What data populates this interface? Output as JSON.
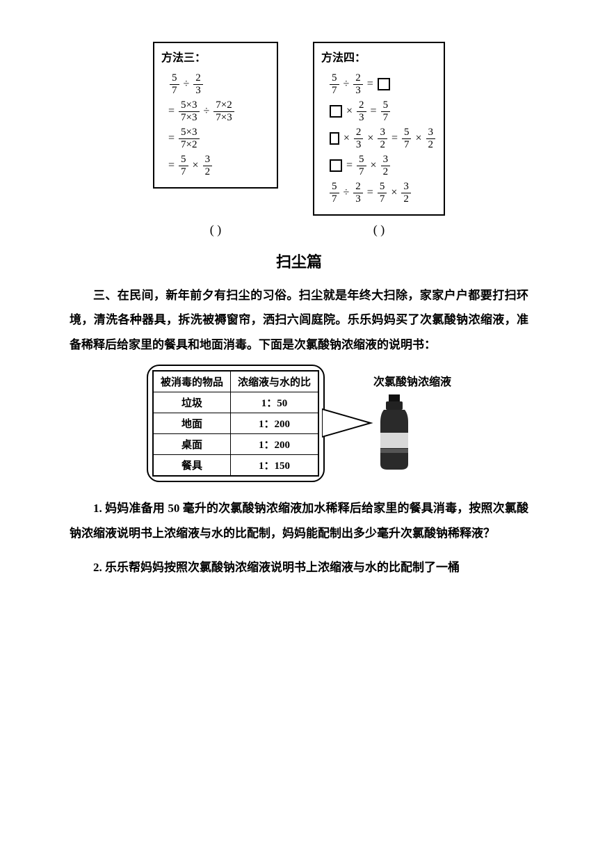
{
  "methods": {
    "m3": {
      "title": "方法三：",
      "lines": [
        {
          "pre": "",
          "content": [
            {
              "frac": [
                "5",
                "7"
              ]
            },
            {
              "op": "÷"
            },
            {
              "frac": [
                "2",
                "3"
              ]
            }
          ]
        },
        {
          "pre": "=",
          "content": [
            {
              "frac": [
                "5×3",
                "7×3"
              ]
            },
            {
              "op": "÷"
            },
            {
              "frac": [
                "7×2",
                "7×3"
              ]
            }
          ]
        },
        {
          "pre": "=",
          "content": [
            {
              "frac": [
                "5×3",
                "7×2"
              ]
            }
          ]
        },
        {
          "pre": "=",
          "content": [
            {
              "frac": [
                "5",
                "7"
              ]
            },
            {
              "op": "×"
            },
            {
              "frac": [
                "3",
                "2"
              ]
            }
          ]
        }
      ]
    },
    "m4": {
      "title": "方法四：",
      "lines": [
        {
          "content": [
            {
              "frac": [
                "5",
                "7"
              ]
            },
            {
              "op": "÷"
            },
            {
              "frac": [
                "2",
                "3"
              ]
            },
            {
              "op": "="
            },
            {
              "box": true
            }
          ]
        },
        {
          "content": [
            {
              "box": true
            },
            {
              "op": "×"
            },
            {
              "frac": [
                "2",
                "3"
              ]
            },
            {
              "op": "="
            },
            {
              "frac": [
                "5",
                "7"
              ]
            }
          ]
        },
        {
          "content": [
            {
              "box": true
            },
            {
              "op": "×"
            },
            {
              "frac": [
                "2",
                "3"
              ]
            },
            {
              "op": "×"
            },
            {
              "frac": [
                "3",
                "2"
              ]
            },
            {
              "op": "="
            },
            {
              "frac": [
                "5",
                "7"
              ]
            },
            {
              "op": "×"
            },
            {
              "frac": [
                "3",
                "2"
              ]
            }
          ]
        },
        {
          "content": [
            {
              "box": true
            },
            {
              "op": "="
            },
            {
              "frac": [
                "5",
                "7"
              ]
            },
            {
              "op": "×"
            },
            {
              "frac": [
                "3",
                "2"
              ]
            }
          ]
        },
        {
          "content": [
            {
              "frac": [
                "5",
                "7"
              ]
            },
            {
              "op": "÷"
            },
            {
              "frac": [
                "2",
                "3"
              ]
            },
            {
              "op": "="
            },
            {
              "frac": [
                "5",
                "7"
              ]
            },
            {
              "op": "×"
            },
            {
              "frac": [
                "3",
                "2"
              ]
            }
          ]
        }
      ]
    }
  },
  "paren": {
    "left": "(      )",
    "right": "(      )"
  },
  "section_title": "扫尘篇",
  "intro": "三、在民间，新年前夕有扫尘的习俗。扫尘就是年终大扫除，家家户户都要打扫环境，清洗各种器具，拆洗被褥窗帘，洒扫六闾庭院。乐乐妈妈买了次氯酸钠浓缩液，准备稀释后给家里的餐具和地面消毒。下面是次氯酸钠浓缩液的说明书：",
  "table": {
    "header": [
      "被消毒的物品",
      "浓缩液与水的比"
    ],
    "rows": [
      [
        "垃圾",
        "1：50"
      ],
      [
        "地面",
        "1：200"
      ],
      [
        "桌面",
        "1：200"
      ],
      [
        "餐具",
        "1：150"
      ]
    ]
  },
  "bottle_label": "次氯酸钠浓缩液",
  "q1": "1. 妈妈准备用 50 毫升的次氯酸钠浓缩液加水稀释后给家里的餐具消毒，按照次氯酸钠浓缩液说明书上浓缩液与水的比配制，妈妈能配制出多少毫升次氯酸钠稀释液？",
  "q2": "2. 乐乐帮妈妈按照次氯酸钠浓缩液说明书上浓缩液与水的比配制了一桶",
  "colors": {
    "text": "#000000",
    "bg": "#ffffff",
    "bottle_body": "#2a2a2a",
    "bottle_cap": "#111111"
  }
}
